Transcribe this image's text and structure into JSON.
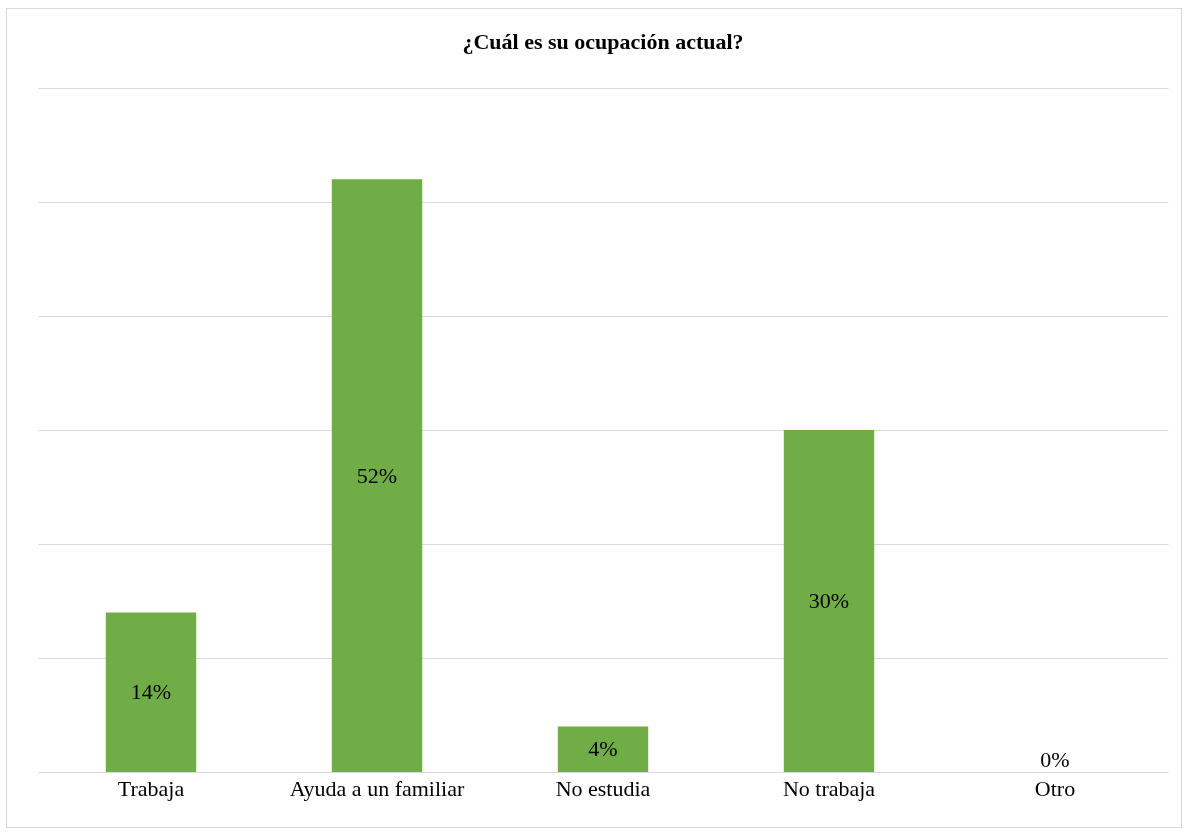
{
  "chart_data": {
    "type": "bar",
    "title": "¿Cuál es su ocupación actual?",
    "categories": [
      "Trabaja",
      "Ayuda a un familiar",
      "No estudia",
      "No trabaja",
      "Otro"
    ],
    "values": [
      14,
      52,
      4,
      30,
      0
    ],
    "value_labels": [
      "14%",
      "52%",
      "4%",
      "30%",
      "0%"
    ],
    "color": "#70ad47",
    "ylim": [
      0,
      60
    ],
    "yticks": [
      {
        "value": 0,
        "label": null
      },
      {
        "value": 10,
        "label": null
      },
      {
        "value": 20,
        "label": null
      },
      {
        "value": 30,
        "label": null
      },
      {
        "value": 40,
        "label": null
      },
      {
        "value": 50,
        "label": null
      },
      {
        "value": 60,
        "label": null
      }
    ],
    "grid": "y",
    "tick_labels": "x"
  }
}
